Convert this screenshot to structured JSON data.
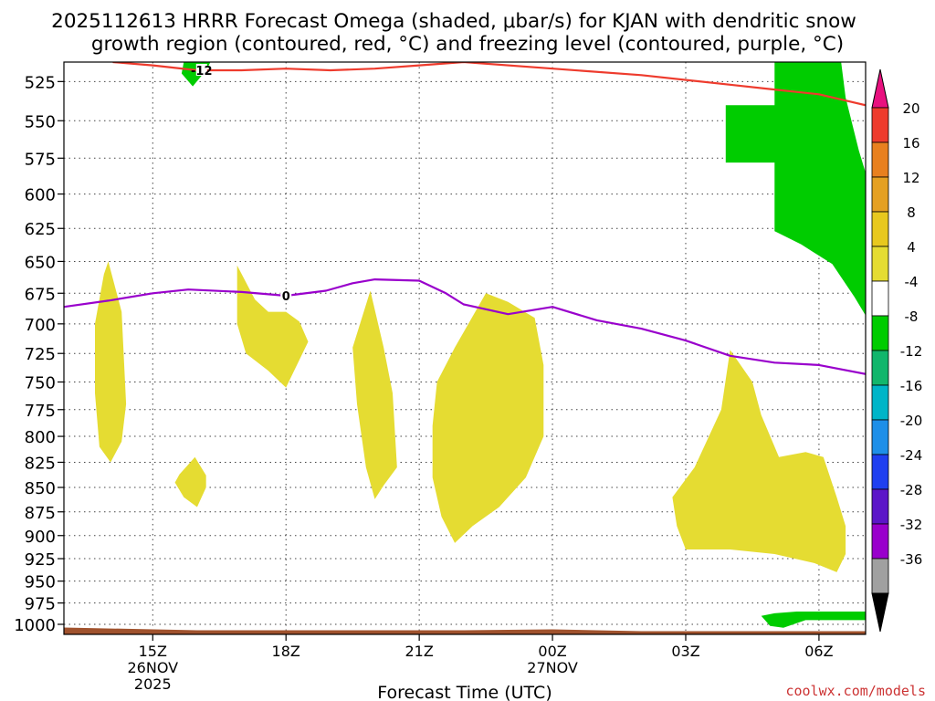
{
  "chart_data": {
    "type": "time-height",
    "title_line1": "2025112613 HRRR Forecast Omega (shaded, μbar/s) for KJAN with dendritic snow",
    "title_line2": "growth region (contoured, red, °C) and freezing level (contoured, purple, °C)",
    "xlabel": "Forecast Time (UTC)",
    "credit": "coolwx.com/models",
    "y_axis": {
      "reversed": true,
      "range": [
        1012,
        513
      ],
      "ticks": [
        525,
        550,
        575,
        600,
        625,
        650,
        675,
        700,
        725,
        750,
        775,
        800,
        825,
        850,
        875,
        900,
        925,
        950,
        975,
        1000
      ],
      "scale": "log-pressure"
    },
    "x_axis": {
      "range_hours": [
        13,
        31.05
      ],
      "ticks": [
        {
          "hour": 15,
          "label": "15Z",
          "sub1": "26NOV",
          "sub2": "2025"
        },
        {
          "hour": 18,
          "label": "18Z",
          "sub1": "",
          "sub2": ""
        },
        {
          "hour": 21,
          "label": "21Z",
          "sub1": "",
          "sub2": ""
        },
        {
          "hour": 24,
          "label": "00Z",
          "sub1": "27NOV",
          "sub2": ""
        },
        {
          "hour": 27,
          "label": "03Z",
          "sub1": "",
          "sub2": ""
        },
        {
          "hour": 30,
          "label": "06Z",
          "sub1": "",
          "sub2": ""
        }
      ]
    },
    "freezing_level": {
      "label": "0",
      "label_at": [
        18,
        677
      ],
      "color": "#9900cc",
      "points": [
        [
          13,
          686
        ],
        [
          14,
          681
        ],
        [
          15,
          675
        ],
        [
          15.8,
          672
        ],
        [
          17,
          674
        ],
        [
          18,
          677
        ],
        [
          18.9,
          673
        ],
        [
          19.5,
          667
        ],
        [
          20,
          664
        ],
        [
          21,
          665
        ],
        [
          21.6,
          675
        ],
        [
          22,
          684
        ],
        [
          23,
          692
        ],
        [
          24,
          686
        ],
        [
          25,
          697
        ],
        [
          26,
          704
        ],
        [
          27,
          714
        ],
        [
          28,
          727
        ],
        [
          29,
          733
        ],
        [
          30,
          735
        ],
        [
          31.05,
          743
        ]
      ]
    },
    "dendritic_contour": {
      "label": "-12",
      "label_at": [
        16.1,
        518
      ],
      "color": "#ee3b2d",
      "points": [
        [
          14.1,
          513
        ],
        [
          15,
          515
        ],
        [
          16,
          518
        ],
        [
          17,
          518
        ],
        [
          18,
          517
        ],
        [
          19,
          518
        ],
        [
          20,
          517
        ],
        [
          21,
          515
        ],
        [
          22,
          513
        ],
        [
          26,
          521
        ],
        [
          28,
          527
        ],
        [
          29,
          530
        ],
        [
          30,
          533
        ],
        [
          31.05,
          540
        ]
      ]
    },
    "omega_regions": [
      {
        "level": "4-8",
        "color": "#e5dc32",
        "points": [
          [
            14,
            650
          ],
          [
            14.3,
            690
          ],
          [
            14.4,
            770
          ],
          [
            14.3,
            805
          ],
          [
            14.05,
            825
          ],
          [
            13.8,
            810
          ],
          [
            13.7,
            760
          ],
          [
            13.7,
            700
          ],
          [
            13.9,
            660
          ]
        ]
      },
      {
        "level": "4-8",
        "color": "#e5dc32",
        "points": [
          [
            15.95,
            820
          ],
          [
            16.2,
            838
          ],
          [
            16.2,
            850
          ],
          [
            16,
            870
          ],
          [
            15.7,
            860
          ],
          [
            15.5,
            845
          ],
          [
            15.6,
            837
          ]
        ]
      },
      {
        "level": "4-8",
        "color": "#e5dc32",
        "points": [
          [
            16.9,
            653
          ],
          [
            17.3,
            680
          ],
          [
            17.6,
            690
          ],
          [
            18,
            690
          ],
          [
            18.3,
            698
          ],
          [
            18.5,
            715
          ],
          [
            18,
            755
          ],
          [
            17.6,
            740
          ],
          [
            17.1,
            725
          ],
          [
            16.9,
            700
          ]
        ]
      },
      {
        "level": "4-8",
        "color": "#e5dc32",
        "points": [
          [
            19.9,
            673
          ],
          [
            20.2,
            720
          ],
          [
            20.4,
            760
          ],
          [
            20.5,
            830
          ],
          [
            20.2,
            848
          ],
          [
            20,
            862
          ],
          [
            19.8,
            830
          ],
          [
            19.6,
            770
          ],
          [
            19.5,
            720
          ]
        ]
      },
      {
        "level": "4-8",
        "color": "#e5dc32",
        "points": [
          [
            22.5,
            675
          ],
          [
            23,
            682
          ],
          [
            23.6,
            695
          ],
          [
            23.8,
            735
          ],
          [
            23.8,
            800
          ],
          [
            23.4,
            840
          ],
          [
            22.8,
            870
          ],
          [
            22.2,
            890
          ],
          [
            21.8,
            908
          ],
          [
            21.5,
            880
          ],
          [
            21.3,
            840
          ],
          [
            21.3,
            790
          ],
          [
            21.4,
            750
          ],
          [
            21.8,
            720
          ]
        ]
      },
      {
        "level": "4-8",
        "color": "#e5dc32",
        "points": [
          [
            28,
            722
          ],
          [
            28.5,
            750
          ],
          [
            28.7,
            780
          ],
          [
            29.1,
            820
          ],
          [
            29.7,
            815
          ],
          [
            30.1,
            820
          ],
          [
            30.4,
            860
          ],
          [
            30.6,
            890
          ],
          [
            30.6,
            920
          ],
          [
            30.4,
            940
          ],
          [
            29.9,
            930
          ],
          [
            29,
            920
          ],
          [
            28,
            915
          ],
          [
            27,
            915
          ],
          [
            26.8,
            890
          ],
          [
            26.7,
            860
          ],
          [
            27.2,
            830
          ],
          [
            27.8,
            775
          ]
        ]
      },
      {
        "level": "-8 to -4",
        "color": "#00cc00",
        "points": [
          [
            15.7,
            513
          ],
          [
            16.3,
            513
          ],
          [
            16.2,
            518
          ],
          [
            15.9,
            528
          ],
          [
            15.65,
            520
          ]
        ]
      },
      {
        "level": "-8 to -4",
        "color": "#00cc00",
        "points": [
          [
            27.9,
            540
          ],
          [
            29,
            540
          ],
          [
            29,
            513
          ],
          [
            30.5,
            513
          ],
          [
            30.6,
            535
          ],
          [
            30.9,
            570
          ],
          [
            31.05,
            585
          ],
          [
            31.05,
            693
          ],
          [
            30.8,
            678
          ],
          [
            30.3,
            652
          ],
          [
            29.6,
            637
          ],
          [
            29,
            627
          ],
          [
            29,
            578
          ],
          [
            27.9,
            578
          ]
        ]
      },
      {
        "level": "-8 to -4",
        "color": "#00cc00",
        "points": [
          [
            28.7,
            990
          ],
          [
            29,
            987
          ],
          [
            29.5,
            985
          ],
          [
            31.05,
            985
          ],
          [
            31.05,
            995
          ],
          [
            29.7,
            995
          ],
          [
            29.2,
            1004
          ],
          [
            28.9,
            1002
          ]
        ]
      }
    ],
    "terrain": {
      "color": "#a0522d",
      "surface_pressure": 1006
    },
    "colorbar": {
      "ticks": [
        "20",
        "16",
        "12",
        "8",
        "4",
        "-4",
        "-8",
        "-12",
        "-16",
        "-20",
        "-24",
        "-28",
        "-32",
        "-36"
      ],
      "colors": [
        "#ee3b2d",
        "#e8801f",
        "#e5a022",
        "#e8c81e",
        "#e5dc32",
        "#ffffff",
        "#00cc00",
        "#12b66c",
        "#00b5c8",
        "#1e8fe8",
        "#1f3ff0",
        "#5c16c8",
        "#9900cc",
        "#a0a0a0"
      ],
      "arrow_top_color": "#e8117f",
      "arrow_bottom_color": "#000000"
    }
  }
}
